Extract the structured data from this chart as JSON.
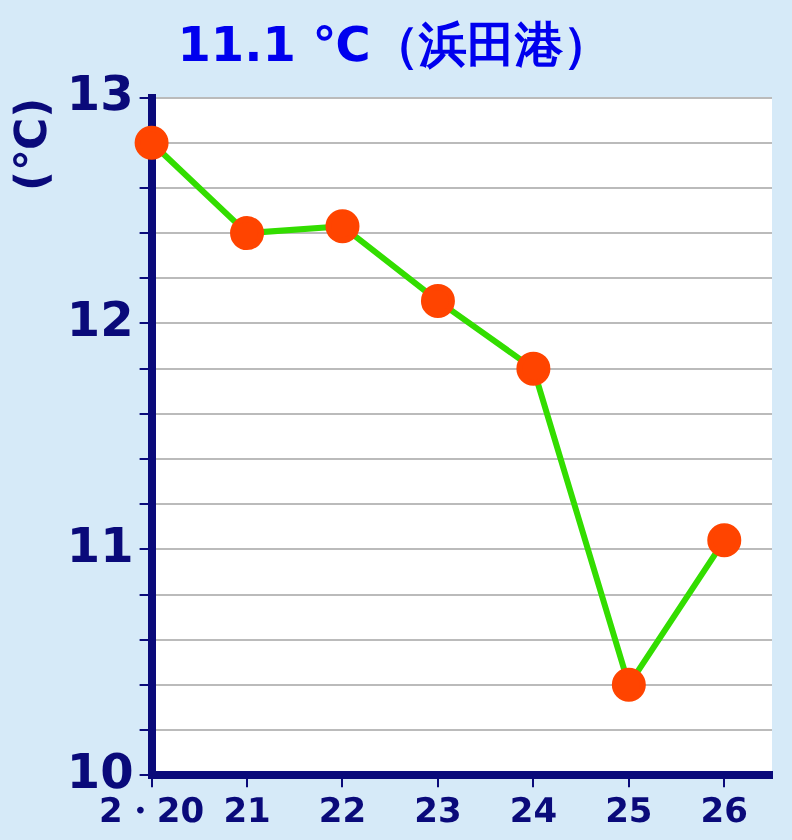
{
  "chart_data": {
    "type": "line",
    "title": "11.1 ℃（浜田港）",
    "ylabel": "(℃)",
    "categories": [
      "2・20",
      "21",
      "22",
      "23",
      "24",
      "25",
      "26"
    ],
    "series": [
      {
        "color": "#33dd00",
        "colors": [
          "#ff4400",
          "#ff4400",
          "#ff4400",
          "#ff4400",
          "#ff4400",
          "#ff4400",
          "#ff4400"
        ],
        "values": [
          12.8,
          12.4,
          12.43,
          12.1,
          11.8,
          10.4,
          11.04
        ]
      }
    ],
    "ylim": [
      10,
      13
    ],
    "yticks": [
      10,
      {
        "value": 10.2,
        "label": null
      },
      {
        "value": 10.4,
        "label": null
      },
      {
        "value": 10.6,
        "label": null
      },
      {
        "value": 10.8,
        "label": null
      },
      11,
      {
        "value": 11.2,
        "label": null
      },
      {
        "value": 11.4,
        "label": null
      },
      {
        "value": 11.6,
        "label": null
      },
      {
        "value": 11.8,
        "label": null
      },
      12,
      {
        "value": 12.2,
        "label": null
      },
      {
        "value": 12.4,
        "label": null
      },
      {
        "value": 12.6,
        "label": null
      },
      {
        "value": 12.8,
        "label": null
      },
      13
    ],
    "grid": "y",
    "legend": false,
    "marker": "circle",
    "line_style": "solid"
  }
}
